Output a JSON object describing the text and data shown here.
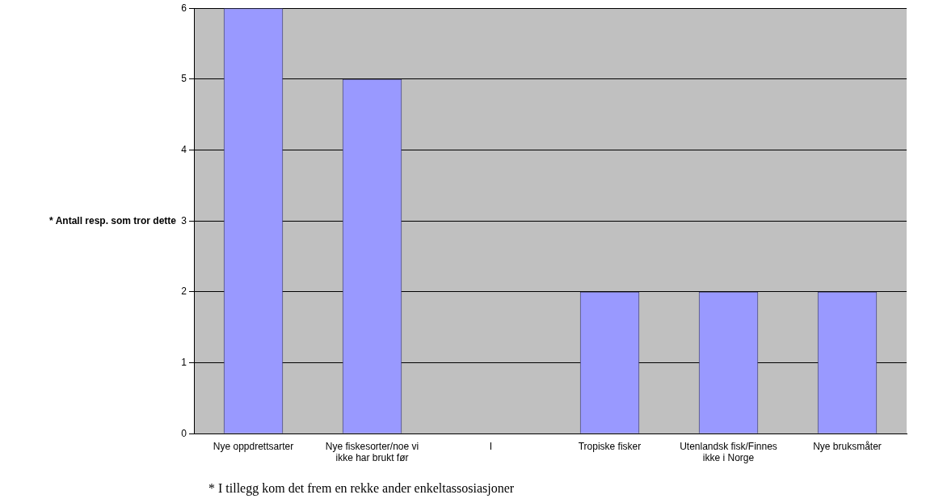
{
  "chart_data": {
    "type": "bar",
    "ylabel": "* Antall resp. som tror dette",
    "categories": [
      "Nye oppdrettsarter",
      "Nye fiskesorter/noe vi ikke har brukt før",
      "I",
      "Tropiske fisker",
      "Utenlandsk fisk/Finnes ikke i Norge",
      "Nye bruksmåter"
    ],
    "values": [
      6,
      5,
      0,
      2,
      2,
      2
    ],
    "color": "#9999ff",
    "ylim": [
      0,
      6
    ],
    "yticks": [
      0,
      1,
      2,
      3,
      4,
      5,
      6
    ],
    "grid": "y",
    "annotations": [
      "* I tillegg kom det frem en rekke ander enkeltassosiasjoner"
    ]
  }
}
